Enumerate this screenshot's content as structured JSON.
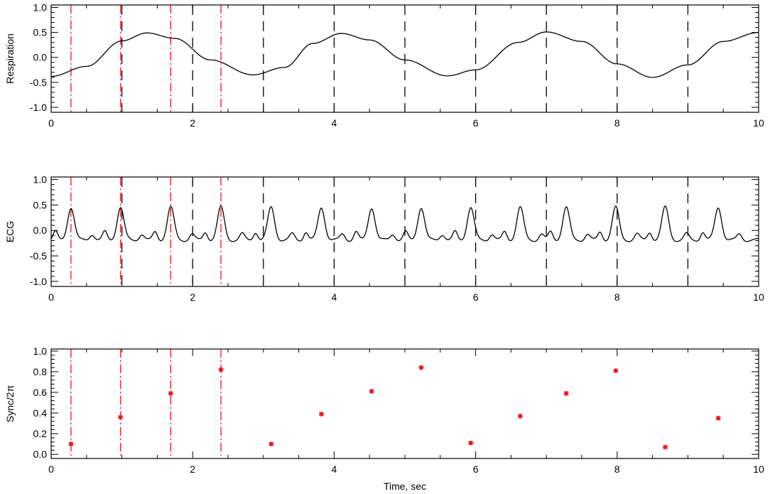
{
  "colors": {
    "black_lines": "#000000",
    "red_lines": "#e8141e",
    "markers": "#e8141e"
  },
  "chart_data": [
    {
      "type": "line",
      "title": "",
      "xlabel": "",
      "ylabel": "Respiration",
      "xlim": [
        0,
        10
      ],
      "ylim": [
        -1.1,
        1.05
      ],
      "xticks": [
        "0",
        "2",
        "4",
        "6",
        "8",
        "10"
      ],
      "yticks": [
        "1.0",
        "0.5",
        "0.0",
        "-0.5",
        "-1.0"
      ],
      "series": [
        {
          "x": [
            0.0,
            0.5,
            1.0,
            1.35,
            1.75,
            2.25,
            2.85,
            3.3,
            3.7,
            4.1,
            4.5,
            5.0,
            5.6,
            6.0,
            6.6,
            7.0,
            7.5,
            8.0,
            8.5,
            9.0,
            9.5,
            10.0
          ],
          "y": [
            -0.38,
            -0.18,
            0.33,
            0.49,
            0.38,
            -0.05,
            -0.35,
            -0.2,
            0.28,
            0.48,
            0.35,
            -0.05,
            -0.37,
            -0.25,
            0.3,
            0.51,
            0.32,
            -0.13,
            -0.4,
            -0.15,
            0.32,
            0.5
          ]
        }
      ],
      "black_dashed_vlines": [
        1,
        2,
        3,
        4,
        5,
        6,
        7,
        8,
        9
      ],
      "red_dashdot_vlines": [
        0.28,
        0.98,
        1.69,
        2.4
      ]
    },
    {
      "type": "line",
      "title": "",
      "xlabel": "",
      "ylabel": "ECG",
      "xlim": [
        0,
        10
      ],
      "ylim": [
        -1.1,
        1.05
      ],
      "xticks": [
        "0",
        "2",
        "4",
        "6",
        "8",
        "10"
      ],
      "yticks": [
        "1.0",
        "0.5",
        "0.0",
        "-0.5",
        "-1.0"
      ],
      "ecg_beat_times": [
        0.28,
        0.98,
        1.69,
        2.4,
        3.11,
        3.82,
        4.53,
        5.23,
        5.93,
        6.63,
        7.28,
        7.98,
        8.68,
        9.43
      ],
      "ecg_peak": 0.45,
      "black_dashed_vlines": [
        1,
        2,
        3,
        4,
        5,
        6,
        7,
        8,
        9
      ],
      "red_dashdot_vlines": [
        0.28,
        0.98,
        1.69,
        2.4
      ]
    },
    {
      "type": "scatter",
      "title": "",
      "xlabel": "Time, sec",
      "ylabel": "Sync/2π",
      "xlim": [
        0,
        10
      ],
      "ylim": [
        -0.04,
        1.02
      ],
      "xticks": [
        "0",
        "2",
        "4",
        "6",
        "8",
        "10"
      ],
      "yticks": [
        "1.0",
        "0.8",
        "0.6",
        "0.4",
        "0.2",
        "0.0"
      ],
      "points": {
        "x": [
          0.28,
          0.98,
          1.69,
          2.4,
          3.11,
          3.82,
          4.53,
          5.23,
          5.93,
          6.63,
          7.28,
          7.98,
          8.68,
          9.43
        ],
        "y": [
          0.1,
          0.36,
          0.59,
          0.82,
          0.1,
          0.39,
          0.61,
          0.84,
          0.11,
          0.37,
          0.59,
          0.81,
          0.07,
          0.35
        ]
      },
      "red_dashdot_vlines": [
        0.28,
        0.98,
        1.69,
        2.4
      ]
    }
  ]
}
